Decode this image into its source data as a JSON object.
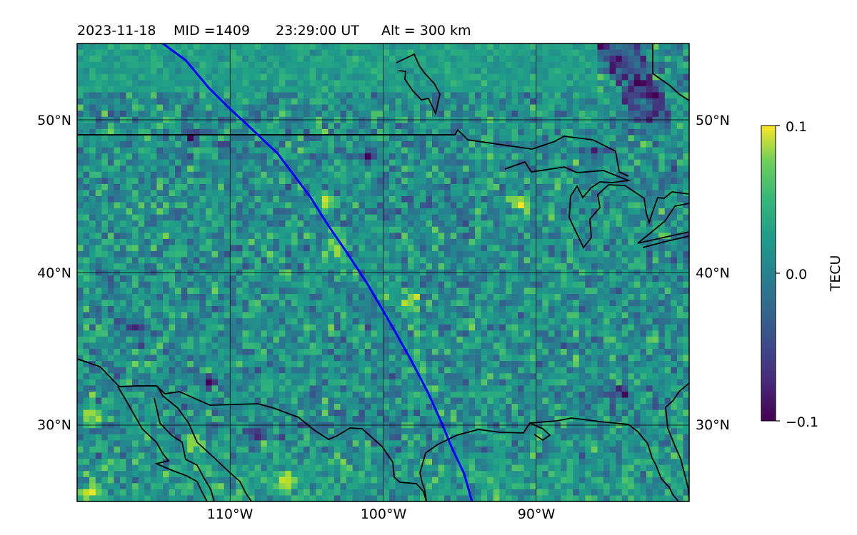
{
  "header": {
    "date": "2023-11-18",
    "mid": "MID =1409",
    "time": "23:29:00  UT",
    "altitude": "Alt = 300 km"
  },
  "map": {
    "lat_labels": [
      "50°N",
      "40°N",
      "30°N"
    ],
    "lon_labels": [
      "110°W",
      "100°W",
      "90°W"
    ]
  },
  "colorbar": {
    "label": "TECU",
    "ticks": [
      "0.1",
      "0.0",
      "−0.1"
    ]
  },
  "chart_data": {
    "type": "heatmap",
    "title": "2023-11-18  MID =1409    23:29:00  UT  Alt = 300 km",
    "projection": "PlateCarree",
    "lon_range": [
      -120,
      -80
    ],
    "lat_range": [
      25,
      55
    ],
    "gridlines": {
      "lon": [
        -110,
        -100,
        -90
      ],
      "lat": [
        30,
        40,
        50
      ]
    },
    "colormap": "viridis",
    "clim": [
      -0.1,
      0.1
    ],
    "colorbar_label": "TECU",
    "track_color": "#0000ff",
    "track": [
      [
        -114.4,
        55.0
      ],
      [
        -112.9,
        53.9
      ],
      [
        -111.4,
        52.1
      ],
      [
        -110.2,
        50.9
      ],
      [
        -108.8,
        49.6
      ],
      [
        -106.9,
        47.8
      ],
      [
        -104.8,
        45.0
      ],
      [
        -103.6,
        43.1
      ],
      [
        -102.3,
        41.2
      ],
      [
        -101.0,
        39.2
      ],
      [
        -99.6,
        36.8
      ],
      [
        -98.2,
        34.3
      ],
      [
        -97.1,
        32.2
      ],
      [
        -96.2,
        30.2
      ],
      [
        -95.5,
        28.5
      ],
      [
        -94.7,
        26.8
      ],
      [
        -94.2,
        25.0
      ]
    ],
    "hotspots_high": [
      [
        -106.3,
        26.3
      ],
      [
        -91.0,
        44.5
      ],
      [
        -103.1,
        41.5
      ],
      [
        -103.6,
        44.6
      ],
      [
        -119.0,
        30.7
      ],
      [
        -119.2,
        25.5
      ],
      [
        -98.3,
        38.0
      ],
      [
        -112.3,
        29.0
      ]
    ],
    "hotspots_low": [
      [
        -112.5,
        48.9
      ],
      [
        -110.3,
        48.0
      ],
      [
        -101.0,
        47.7
      ],
      [
        -108.3,
        29.4
      ],
      [
        -111.3,
        32.8
      ],
      [
        -86.0,
        48.0
      ],
      [
        -84.6,
        32.0
      ],
      [
        -116.1,
        36.5
      ]
    ]
  }
}
